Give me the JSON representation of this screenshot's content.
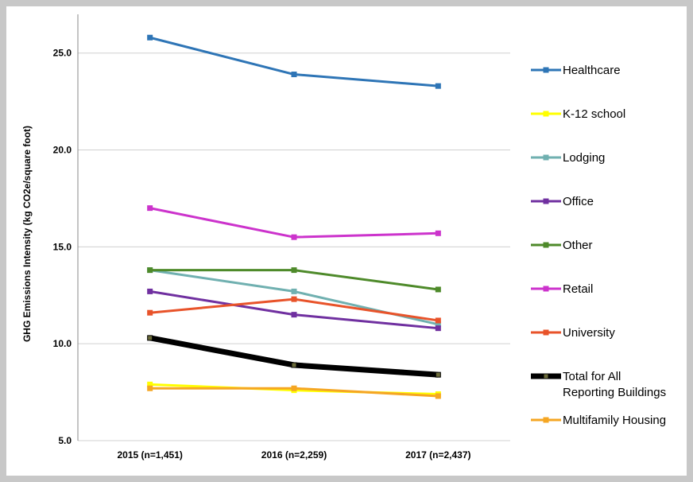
{
  "chart_data": {
    "type": "line",
    "title": "",
    "xlabel": "",
    "ylabel": "GHG Emissions Intensity (kg CO2e/square foot)",
    "categories": [
      "2015 (n=1,451)",
      "2016 (n=2,259)",
      "2017 (n=2,437)"
    ],
    "ylim": [
      5.0,
      27.0
    ],
    "yticks": [
      "25.0",
      "20.0",
      "15.0",
      "10.0",
      "5.0"
    ],
    "ytick_values": [
      25,
      20,
      15,
      10,
      5
    ],
    "grid": true,
    "legend_position": "right",
    "series": [
      {
        "name": "Healthcare",
        "values": [
          25.8,
          23.9,
          23.3
        ],
        "color": "#2e75b6",
        "marker": "square",
        "thick": false
      },
      {
        "name": "K-12 school",
        "values": [
          7.9,
          7.6,
          7.4
        ],
        "color": "#ffff00",
        "marker": "square",
        "thick": false
      },
      {
        "name": "Lodging",
        "values": [
          13.8,
          12.7,
          11.0
        ],
        "color": "#70b0b0",
        "marker": "square",
        "thick": false
      },
      {
        "name": "Office",
        "values": [
          12.7,
          11.5,
          10.8
        ],
        "color": "#7030a0",
        "marker": "square",
        "thick": false
      },
      {
        "name": "Other",
        "values": [
          13.8,
          13.8,
          12.8
        ],
        "color": "#4e8a2a",
        "marker": "square",
        "thick": false
      },
      {
        "name": "Retail",
        "values": [
          17.0,
          15.5,
          15.7
        ],
        "color": "#cc33cc",
        "marker": "square",
        "thick": false
      },
      {
        "name": "University",
        "values": [
          11.6,
          12.3,
          11.2
        ],
        "color": "#e8532a",
        "marker": "square",
        "thick": false
      },
      {
        "name": "Total for All Reporting Buildings",
        "values": [
          10.3,
          8.9,
          8.4
        ],
        "color": "#000000",
        "marker": "square",
        "thick": true
      },
      {
        "name": "Multifamily Housing",
        "values": [
          7.7,
          7.7,
          7.3
        ],
        "color": "#f5a623",
        "marker": "square",
        "thick": false
      }
    ]
  }
}
